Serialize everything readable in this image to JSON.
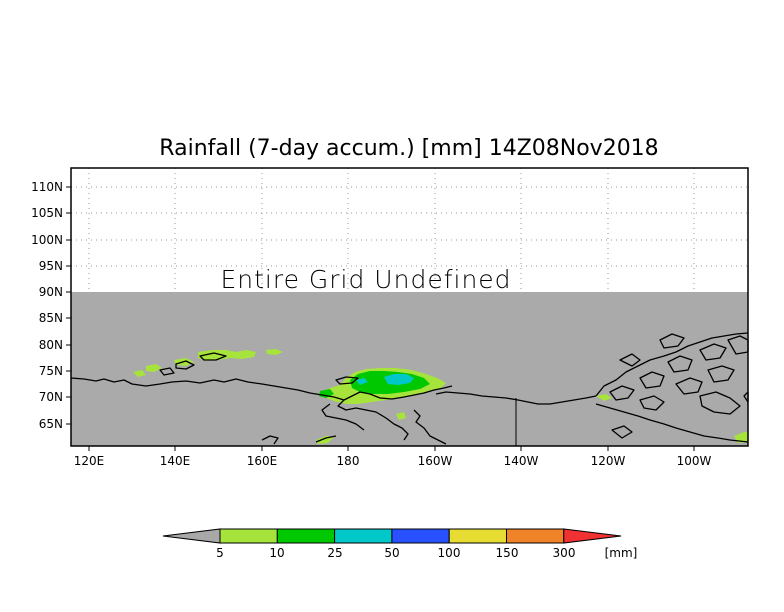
{
  "title": "Rainfall (7-day accum.) [mm] 14Z08Nov2018",
  "overlay_text": "Entire Grid Undefined",
  "lat_labels": [
    "110N",
    "105N",
    "100N",
    "95N",
    "90N",
    "85N",
    "80N",
    "75N",
    "70N",
    "65N"
  ],
  "lon_labels": [
    "120E",
    "140E",
    "160E",
    "180",
    "160W",
    "140W",
    "120W",
    "100W"
  ],
  "colorbar": {
    "unit": "[mm]",
    "tick_labels": [
      "5",
      "10",
      "25",
      "50",
      "100",
      "150",
      "300"
    ],
    "colors": [
      "#a8a8a8",
      "#a6e43c",
      "#00c800",
      "#00c8c8",
      "#2850ff",
      "#e6dc32",
      "#f08228",
      "#f03232"
    ]
  },
  "colors": {
    "undefined_fill": "#aaaaaa",
    "coastline": "#000000",
    "grid": "#999999"
  }
}
